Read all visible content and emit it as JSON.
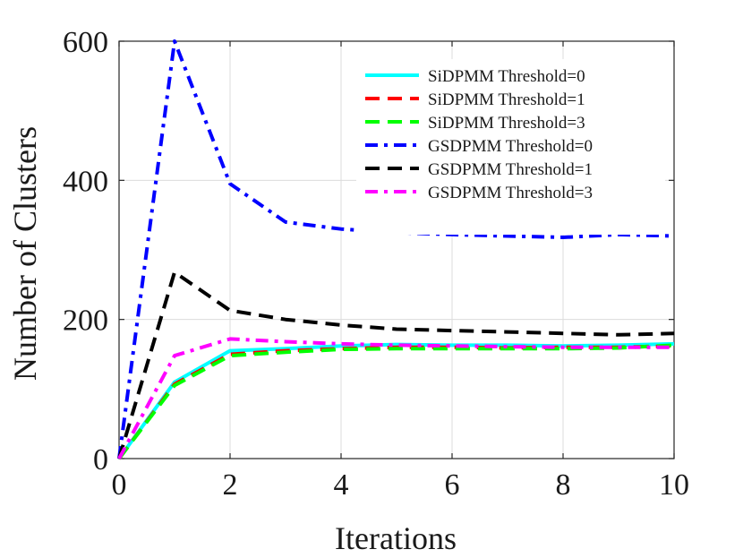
{
  "chart_data": {
    "type": "line",
    "title": "",
    "xlabel": "Iterations",
    "ylabel": "Number of Clusters",
    "xlim": [
      0,
      10
    ],
    "ylim": [
      0,
      600
    ],
    "xticks": [
      0,
      2,
      4,
      6,
      8,
      10
    ],
    "yticks": [
      0,
      200,
      400,
      600
    ],
    "xtick_labels": [
      "0",
      "2",
      "4",
      "6",
      "8",
      "10"
    ],
    "ytick_labels": [
      "0",
      "200",
      "400",
      "600"
    ],
    "grid": true,
    "legend_position": "top-right",
    "x": [
      0,
      1,
      2,
      3,
      4,
      5,
      6,
      7,
      8,
      9,
      10
    ],
    "series": [
      {
        "name": "SiDPMM Threshold=0",
        "color": "#00ffff",
        "style": "solid",
        "values": [
          0,
          110,
          155,
          158,
          162,
          164,
          163,
          163,
          162,
          163,
          165
        ]
      },
      {
        "name": "SiDPMM Threshold=1",
        "color": "#ff0000",
        "style": "dashed",
        "values": [
          0,
          107,
          150,
          155,
          158,
          160,
          160,
          159,
          160,
          160,
          162
        ]
      },
      {
        "name": "SiDPMM Threshold=3",
        "color": "#00ff00",
        "style": "dashed",
        "values": [
          0,
          105,
          148,
          153,
          157,
          158,
          158,
          158,
          158,
          159,
          163
        ]
      },
      {
        "name": "GSDPMM Threshold=0",
        "color": "#0000ff",
        "style": "dashdot",
        "values": [
          0,
          600,
          395,
          340,
          330,
          325,
          322,
          320,
          318,
          322,
          320
        ]
      },
      {
        "name": "GSDPMM Threshold=1",
        "color": "#000000",
        "style": "dashed",
        "values": [
          0,
          268,
          213,
          200,
          192,
          186,
          184,
          182,
          180,
          178,
          180
        ]
      },
      {
        "name": "GSDPMM Threshold=3",
        "color": "#ff00ff",
        "style": "dashdot",
        "values": [
          0,
          148,
          172,
          168,
          165,
          163,
          162,
          161,
          160,
          160,
          160
        ]
      }
    ]
  }
}
